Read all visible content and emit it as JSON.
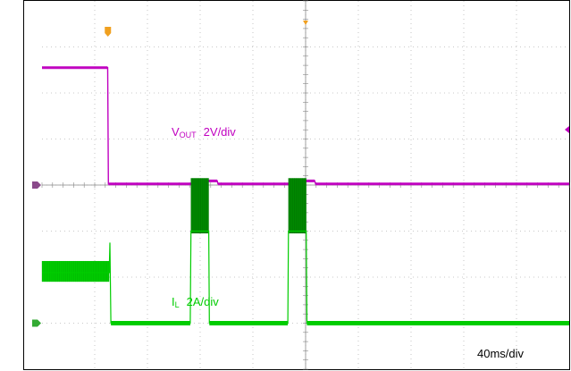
{
  "chart_data": {
    "type": "line",
    "title": "",
    "timebase": "40ms/div",
    "x_unit": "ms",
    "x_range": [
      0,
      400
    ],
    "grid": true,
    "divisions": {
      "x": 10,
      "y": 8
    },
    "trigger_time_ms": 50,
    "series": [
      {
        "name": "VOUT",
        "label_main": "V",
        "label_sub": "OUT",
        "scale": "2V/div",
        "color": "#c000c0",
        "marker": "1",
        "points": [
          [
            0,
            5.1
          ],
          [
            49.8,
            5.1
          ],
          [
            50.4,
            0.05
          ],
          [
            117,
            0.05
          ],
          [
            117.5,
            0.18
          ],
          [
            133,
            0.18
          ],
          [
            133.5,
            0.05
          ],
          [
            192,
            0.05
          ],
          [
            192.5,
            0.18
          ],
          [
            207,
            0.18
          ],
          [
            207.5,
            0.05
          ],
          [
            400,
            0.05
          ]
        ],
        "noise_band_v": 0.12,
        "zero_div_from_top": 4.0,
        "volts_per_div": 2
      },
      {
        "name": "IL",
        "label_main": "I",
        "label_sub": "L",
        "scale": "2A/div",
        "color": "#00cc00",
        "dark_color": "#008800",
        "marker": "2",
        "points": [
          [
            0,
            2.2
          ],
          [
            51,
            2.2
          ],
          [
            51.5,
            3.5
          ],
          [
            52.3,
            0.0
          ],
          [
            112.5,
            0.0
          ],
          [
            113,
            4.0
          ],
          [
            126.5,
            4.0
          ],
          [
            127,
            0.0
          ],
          [
            186.5,
            0.0
          ],
          [
            187,
            4.0
          ],
          [
            200.5,
            4.0
          ],
          [
            201,
            0.0
          ],
          [
            400,
            0.0
          ]
        ],
        "ripple_bands": [
          {
            "t0": 0,
            "t1": 51,
            "low": 1.8,
            "high": 2.7
          },
          {
            "t0": 113,
            "t1": 126.5,
            "low": 3.9,
            "high": 6.3
          },
          {
            "t0": 187,
            "t1": 200.5,
            "low": 3.9,
            "high": 6.3
          }
        ],
        "zero_div_from_top": 7.0,
        "amps_per_div": 2
      }
    ]
  }
}
